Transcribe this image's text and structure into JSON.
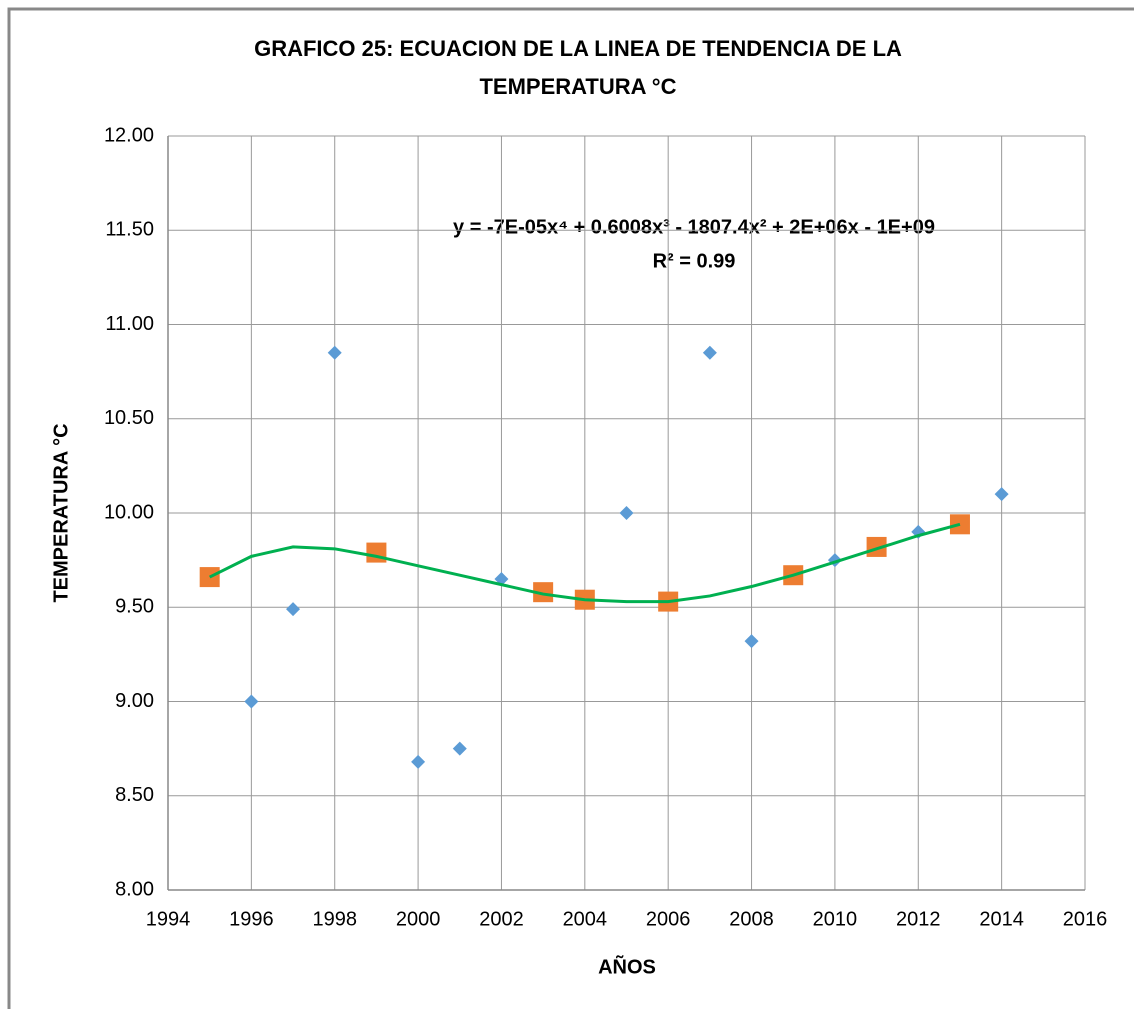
{
  "chart_data": {
    "type": "scatter",
    "title": [
      "GRAFICO 25: ECUACION DE LA LINEA DE TENDENCIA DE LA",
      "TEMPERATURA °C"
    ],
    "x_label": "AÑOS",
    "y_label": "TEMPERATURA °C",
    "annotations": [
      "y = -7E-05x⁴ + 0.6008x³ - 1807.4x² + 2E+06x - 1E+09",
      "R² = 0.99"
    ],
    "xlim": [
      1994,
      2016
    ],
    "xticks": [
      1994,
      1996,
      1998,
      2000,
      2002,
      2004,
      2006,
      2008,
      2010,
      2012,
      2014,
      2016
    ],
    "ylim": [
      8,
      12
    ],
    "yticks": [
      {
        "value": 8,
        "label": "8.00"
      },
      {
        "value": 8.5,
        "label": "8.50"
      },
      {
        "value": 9,
        "label": "9.00"
      },
      {
        "value": 9.5,
        "label": "9.50"
      },
      {
        "value": 10,
        "label": "10.00"
      },
      {
        "value": 10.5,
        "label": "10.50"
      },
      {
        "value": 11,
        "label": "11.00"
      },
      {
        "value": 11.5,
        "label": "11.50"
      },
      {
        "value": 12,
        "label": "12.00"
      }
    ],
    "grid": true,
    "series": [
      {
        "kind": "scatter",
        "marker": "diamond",
        "color": "#5b9bd5",
        "x": [
          1996,
          1997,
          1998,
          2000,
          2001,
          2002,
          2005,
          2007,
          2008,
          2010,
          2012,
          2014
        ],
        "values": [
          9.0,
          9.49,
          10.85,
          8.68,
          8.75,
          9.65,
          10.0,
          10.85,
          9.32,
          9.75,
          9.9,
          10.1
        ]
      },
      {
        "kind": "scatter",
        "marker": "square",
        "color": "#ed7d31",
        "x": [
          1995,
          1999,
          2003,
          2004,
          2006,
          2009,
          2011,
          2013
        ],
        "values": [
          9.66,
          9.79,
          9.58,
          9.54,
          9.53,
          9.67,
          9.82,
          9.94
        ]
      },
      {
        "kind": "line",
        "color": "#00b050",
        "x": [
          1995,
          1996,
          1997,
          1998,
          1999,
          2000,
          2001,
          2002,
          2003,
          2004,
          2005,
          2006,
          2007,
          2008,
          2009,
          2010,
          2011,
          2012,
          2013
        ],
        "values": [
          9.66,
          9.77,
          9.82,
          9.81,
          9.77,
          9.72,
          9.67,
          9.62,
          9.57,
          9.54,
          9.53,
          9.53,
          9.56,
          9.61,
          9.67,
          9.74,
          9.81,
          9.88,
          9.94
        ]
      }
    ]
  }
}
